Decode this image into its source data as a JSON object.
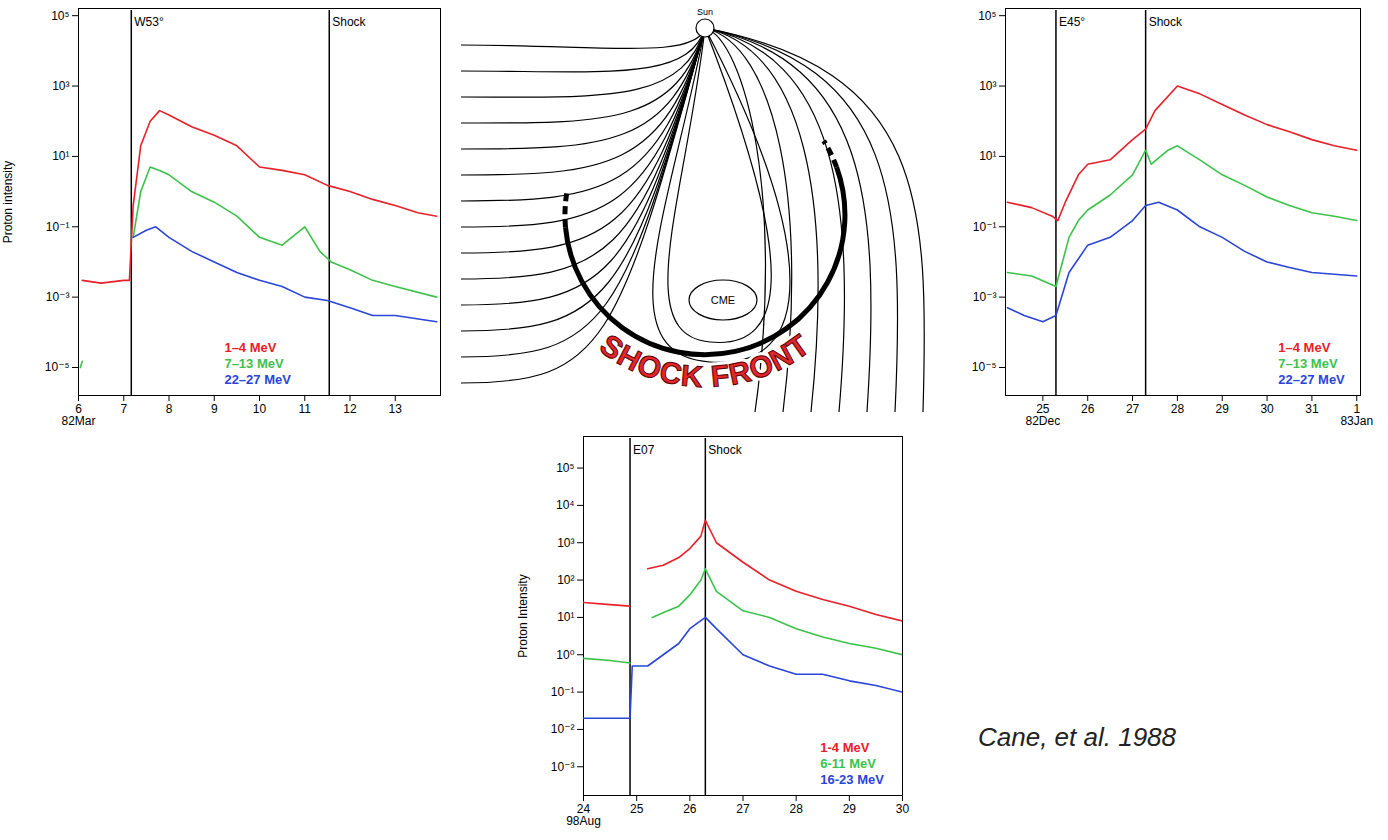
{
  "chart_data": [
    {
      "type": "line",
      "log": "y",
      "ylabel": "Proton intensity",
      "legend": "lower center",
      "xlim": [
        "1982-03-06T00:00Z",
        "1982-03-14T00:00Z"
      ],
      "xticks": [
        {
          "value": "1982-03-06T00:00Z",
          "label": "6\n82Mar"
        },
        {
          "value": "1982-03-07T00:00Z",
          "label": "7"
        },
        {
          "value": "1982-03-08T00:00Z",
          "label": "8"
        },
        {
          "value": "1982-03-09T00:00Z",
          "label": "9"
        },
        {
          "value": "1982-03-10T00:00Z",
          "label": "10"
        },
        {
          "value": "1982-03-11T00:00Z",
          "label": "11"
        },
        {
          "value": "1982-03-12T00:00Z",
          "label": "12"
        },
        {
          "value": "1982-03-13T00:00Z",
          "label": "13"
        }
      ],
      "ylim": [
        1.6e-06,
        160000
      ],
      "yticks": [
        {
          "value": 100000,
          "label": "10⁵"
        },
        {
          "value": 1000,
          "label": "10³"
        },
        {
          "value": 10,
          "label": "10¹"
        },
        {
          "value": 0.1,
          "label": "10⁻¹"
        },
        {
          "value": 0.001,
          "label": "10⁻³"
        },
        {
          "value": 1e-05,
          "label": "10⁻⁵"
        }
      ],
      "annotations": [
        {
          "x": "1982-03-07T04:00Z",
          "label": "W53°"
        },
        {
          "x": "1982-03-11T13:00Z",
          "label": "Shock"
        }
      ],
      "series": [
        {
          "name": "1–4 MeV",
          "color": "#e8202a",
          "x": [
            "1982-03-06T02:00Z",
            "1982-03-06T12:00Z",
            "1982-03-07T00:00Z",
            "1982-03-07T03:00Z",
            "1982-03-07T05:00Z",
            "1982-03-07T09:00Z",
            "1982-03-07T14:00Z",
            "1982-03-07T19:00Z",
            "1982-03-08T00:00Z",
            "1982-03-08T12:00Z",
            "1982-03-09T00:00Z",
            "1982-03-09T12:00Z",
            "1982-03-10T00:00Z",
            "1982-03-10T12:00Z",
            "1982-03-11T00:00Z",
            "1982-03-11T12:00Z",
            "1982-03-12T00:00Z",
            "1982-03-12T12:00Z",
            "1982-03-13T00:00Z",
            "1982-03-13T12:00Z",
            "1982-03-13T22:00Z"
          ],
          "values": [
            0.003,
            0.0025,
            0.003,
            0.003,
            0.4,
            20,
            100,
            200,
            150,
            70,
            40,
            20,
            5,
            4,
            3,
            1.5,
            1,
            0.6,
            0.4,
            0.25,
            0.2
          ]
        },
        {
          "name": "7–13 MeV",
          "color": "#3cc24a",
          "x": [
            "1982-03-06T01:00Z",
            "1982-03-06T02:00Z",
            "1982-03-06T03:00Z",
            "1982-03-07T05:00Z",
            "1982-03-07T09:00Z",
            "1982-03-07T14:00Z",
            "1982-03-07T19:00Z",
            "1982-03-08T00:00Z",
            "1982-03-08T12:00Z",
            "1982-03-09T00:00Z",
            "1982-03-09T12:00Z",
            "1982-03-10T00:00Z",
            "1982-03-10T12:00Z",
            "1982-03-11T00:00Z",
            "1982-03-11T08:00Z",
            "1982-03-11T14:00Z",
            "1982-03-12T00:00Z",
            "1982-03-12T12:00Z",
            "1982-03-13T00:00Z",
            "1982-03-13T22:00Z"
          ],
          "values": [
            1e-05,
            1.5e-05,
            null,
            0.05,
            1,
            5,
            4,
            3,
            1,
            0.5,
            0.2,
            0.05,
            0.03,
            0.1,
            0.02,
            0.01,
            0.006,
            0.003,
            0.002,
            0.001
          ]
        },
        {
          "name": "22–27 MeV",
          "color": "#2b45d8",
          "x": [
            "1982-03-07T05:00Z",
            "1982-03-07T12:00Z",
            "1982-03-07T17:00Z",
            "1982-03-08T00:00Z",
            "1982-03-08T12:00Z",
            "1982-03-09T00:00Z",
            "1982-03-09T12:00Z",
            "1982-03-10T00:00Z",
            "1982-03-10T12:00Z",
            "1982-03-11T00:00Z",
            "1982-03-11T12:00Z",
            "1982-03-12T00:00Z",
            "1982-03-12T12:00Z",
            "1982-03-13T00:00Z",
            "1982-03-13T22:00Z"
          ],
          "values": [
            0.05,
            0.08,
            0.1,
            0.05,
            0.02,
            0.01,
            0.005,
            0.003,
            0.002,
            0.001,
            0.0008,
            0.0005,
            0.0003,
            0.0003,
            0.0002
          ]
        }
      ]
    },
    {
      "type": "line",
      "log": "y",
      "legend": "lower right",
      "xlim": [
        "1982-12-24T04:00Z",
        "1983-01-01T02:00Z"
      ],
      "xticks": [
        {
          "value": "1982-12-25T00:00Z",
          "label": "25\n82Dec"
        },
        {
          "value": "1982-12-26T00:00Z",
          "label": "26"
        },
        {
          "value": "1982-12-27T00:00Z",
          "label": "27"
        },
        {
          "value": "1982-12-28T00:00Z",
          "label": "28"
        },
        {
          "value": "1982-12-29T00:00Z",
          "label": "29"
        },
        {
          "value": "1982-12-30T00:00Z",
          "label": "30"
        },
        {
          "value": "1982-12-31T00:00Z",
          "label": "31"
        },
        {
          "value": "1983-01-01T00:00Z",
          "label": "1\n83Jan"
        }
      ],
      "ylim": [
        1.6e-06,
        160000
      ],
      "yticks": [
        {
          "value": 100000,
          "label": "10⁵"
        },
        {
          "value": 1000,
          "label": "10³"
        },
        {
          "value": 10,
          "label": "10¹"
        },
        {
          "value": 0.1,
          "label": "10⁻¹"
        },
        {
          "value": 0.001,
          "label": "10⁻³"
        },
        {
          "value": 1e-05,
          "label": "10⁻⁵"
        }
      ],
      "annotations": [
        {
          "x": "1982-12-25T07:00Z",
          "label": "E45°"
        },
        {
          "x": "1982-12-27T07:00Z",
          "label": "Shock"
        }
      ],
      "series": [
        {
          "name": "1–4 MeV",
          "color": "#e8202a",
          "x": [
            "1982-12-24T05:00Z",
            "1982-12-24T18:00Z",
            "1982-12-25T05:00Z",
            "1982-12-25T08:00Z",
            "1982-12-25T12:00Z",
            "1982-12-25T19:00Z",
            "1982-12-26T00:00Z",
            "1982-12-26T12:00Z",
            "1982-12-27T00:00Z",
            "1982-12-27T07:00Z",
            "1982-12-27T12:00Z",
            "1982-12-28T00:00Z",
            "1982-12-28T12:00Z",
            "1982-12-29T00:00Z",
            "1982-12-29T12:00Z",
            "1982-12-30T00:00Z",
            "1982-12-30T12:00Z",
            "1982-12-31T00:00Z",
            "1982-12-31T12:00Z",
            "1983-01-01T00:00Z"
          ],
          "values": [
            0.5,
            0.35,
            0.2,
            0.15,
            0.5,
            3,
            6,
            8,
            30,
            60,
            200,
            1000,
            600,
            300,
            150,
            80,
            50,
            30,
            20,
            15
          ]
        },
        {
          "name": "7–13 MeV",
          "color": "#3cc24a",
          "x": [
            "1982-12-24T05:00Z",
            "1982-12-24T18:00Z",
            "1982-12-25T07:00Z",
            "1982-12-25T14:00Z",
            "1982-12-25T19:00Z",
            "1982-12-26T00:00Z",
            "1982-12-26T12:00Z",
            "1982-12-27T00:00Z",
            "1982-12-27T07:00Z",
            "1982-12-27T10:00Z",
            "1982-12-27T19:00Z",
            "1982-12-28T00:00Z",
            "1982-12-28T12:00Z",
            "1982-12-29T00:00Z",
            "1982-12-29T12:00Z",
            "1982-12-30T00:00Z",
            "1982-12-30T12:00Z",
            "1982-12-31T00:00Z",
            "1982-12-31T12:00Z",
            "1983-01-01T00:00Z"
          ],
          "values": [
            0.005,
            0.004,
            0.002,
            0.05,
            0.15,
            0.3,
            0.8,
            3,
            15,
            6,
            15,
            20,
            8,
            3,
            1.5,
            0.7,
            0.4,
            0.25,
            0.2,
            0.15
          ]
        },
        {
          "name": "22–27 MeV",
          "color": "#2b45d8",
          "x": [
            "1982-12-24T05:00Z",
            "1982-12-24T14:00Z",
            "1982-12-25T00:00Z",
            "1982-12-25T07:00Z",
            "1982-12-25T14:00Z",
            "1982-12-26T00:00Z",
            "1982-12-26T12:00Z",
            "1982-12-27T00:00Z",
            "1982-12-27T07:00Z",
            "1982-12-27T14:00Z",
            "1982-12-28T00:00Z",
            "1982-12-28T12:00Z",
            "1982-12-29T00:00Z",
            "1982-12-29T12:00Z",
            "1982-12-30T00:00Z",
            "1982-12-30T12:00Z",
            "1982-12-31T00:00Z",
            "1983-01-01T00:00Z"
          ],
          "values": [
            0.0005,
            0.0003,
            0.0002,
            0.0003,
            0.005,
            0.03,
            0.05,
            0.15,
            0.4,
            0.5,
            0.3,
            0.1,
            0.05,
            0.02,
            0.01,
            0.007,
            0.005,
            0.004
          ]
        }
      ]
    },
    {
      "type": "line",
      "log": "y",
      "ylabel": "Proton Intensity",
      "legend": "lower right",
      "xlim": [
        "1998-08-24T00:00Z",
        "1998-08-30T00:00Z"
      ],
      "xticks": [
        {
          "value": "1998-08-24T00:00Z",
          "label": "24\n98Aug"
        },
        {
          "value": "1998-08-25T00:00Z",
          "label": "25"
        },
        {
          "value": "1998-08-26T00:00Z",
          "label": "26"
        },
        {
          "value": "1998-08-27T00:00Z",
          "label": "27"
        },
        {
          "value": "1998-08-28T00:00Z",
          "label": "28"
        },
        {
          "value": "1998-08-29T00:00Z",
          "label": "29"
        },
        {
          "value": "1998-08-30T00:00Z",
          "label": "30"
        }
      ],
      "ylim": [
        0.00017,
        700000
      ],
      "yticks": [
        {
          "value": 100000,
          "label": "10⁵"
        },
        {
          "value": 10000,
          "label": "10⁴"
        },
        {
          "value": 1000,
          "label": "10³"
        },
        {
          "value": 100,
          "label": "10²"
        },
        {
          "value": 10,
          "label": "10¹"
        },
        {
          "value": 1,
          "label": "10⁰"
        },
        {
          "value": 0.1,
          "label": "10⁻¹"
        },
        {
          "value": 0.01,
          "label": "10⁻²"
        },
        {
          "value": 0.001,
          "label": "10⁻³"
        }
      ],
      "annotations": [
        {
          "x": "1998-08-24T21:00Z",
          "label": "E07"
        },
        {
          "x": "1998-08-26T07:00Z",
          "label": "Shock"
        }
      ],
      "series": [
        {
          "name": "1-4 MeV",
          "color": "#e8202a",
          "x": [
            "1998-08-24T00:00Z",
            "1998-08-24T12:00Z",
            "1998-08-24T21:00Z",
            "1998-08-25T02:00Z",
            "1998-08-25T05:00Z",
            "1998-08-25T12:00Z",
            "1998-08-25T19:00Z",
            "1998-08-26T00:00Z",
            "1998-08-26T05:00Z",
            "1998-08-26T07:00Z",
            "1998-08-26T12:00Z",
            "1998-08-27T00:00Z",
            "1998-08-27T12:00Z",
            "1998-08-28T00:00Z",
            "1998-08-28T12:00Z",
            "1998-08-29T00:00Z",
            "1998-08-29T12:00Z",
            "1998-08-30T00:00Z"
          ],
          "values": [
            25,
            22,
            20,
            null,
            200,
            250,
            400,
            700,
            1500,
            4000,
            1000,
            300,
            100,
            50,
            30,
            20,
            12,
            8
          ]
        },
        {
          "name": "6-11 MeV",
          "color": "#3cc24a",
          "x": [
            "1998-08-24T00:00Z",
            "1998-08-24T12:00Z",
            "1998-08-24T21:00Z",
            "1998-08-25T02:00Z",
            "1998-08-25T07:00Z",
            "1998-08-25T14:00Z",
            "1998-08-25T19:00Z",
            "1998-08-26T00:00Z",
            "1998-08-26T05:00Z",
            "1998-08-26T07:00Z",
            "1998-08-26T12:00Z",
            "1998-08-27T00:00Z",
            "1998-08-27T12:00Z",
            "1998-08-28T00:00Z",
            "1998-08-28T12:00Z",
            "1998-08-29T00:00Z",
            "1998-08-29T12:00Z",
            "1998-08-30T00:00Z"
          ],
          "values": [
            0.8,
            0.7,
            0.6,
            null,
            10,
            15,
            20,
            40,
            100,
            200,
            50,
            15,
            10,
            5,
            3,
            2,
            1.5,
            1
          ]
        },
        {
          "name": "16-23 MeV",
          "color": "#2b45d8",
          "x": [
            "1998-08-24T00:00Z",
            "1998-08-24T12:00Z",
            "1998-08-24T21:00Z",
            "1998-08-24T22:00Z",
            "1998-08-25T05:00Z",
            "1998-08-25T12:00Z",
            "1998-08-25T19:00Z",
            "1998-08-26T00:00Z",
            "1998-08-26T07:00Z",
            "1998-08-26T12:00Z",
            "1998-08-27T00:00Z",
            "1998-08-27T12:00Z",
            "1998-08-28T00:00Z",
            "1998-08-28T12:00Z",
            "1998-08-29T00:00Z",
            "1998-08-29T12:00Z",
            "1998-08-30T00:00Z"
          ],
          "values": [
            0.02,
            0.02,
            0.02,
            0.5,
            0.5,
            1,
            2,
            5,
            10,
            5,
            1,
            0.5,
            0.3,
            0.3,
            0.2,
            0.15,
            0.1
          ]
        }
      ]
    }
  ],
  "diagram": {
    "sun": "Sun",
    "cme": "CME",
    "shock": "SHOCK FRONT"
  },
  "caption": "Cane, et al. 1988"
}
